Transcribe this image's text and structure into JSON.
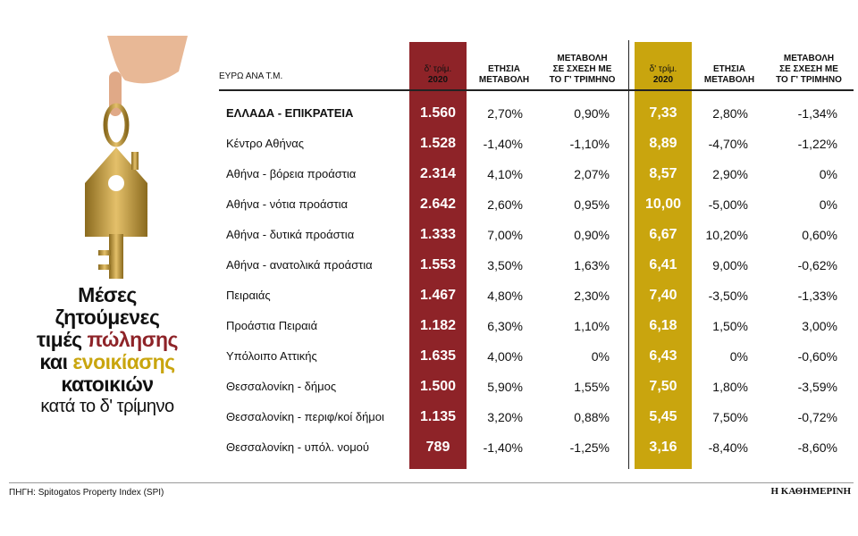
{
  "title": {
    "lines": [
      [
        {
          "text": "Μέσες"
        }
      ],
      [
        {
          "text": "ζητούμενες"
        }
      ],
      [
        {
          "text": "τιμές "
        },
        {
          "text": "πώλησης",
          "color": "#8e2328"
        }
      ],
      [
        {
          "text": "και "
        },
        {
          "text": "ενοικίασης",
          "color": "#c9a50e"
        }
      ],
      [
        {
          "text": "κατοικιών"
        }
      ]
    ],
    "subtitle": "κατά το δ' τρίμηνο"
  },
  "table": {
    "headers": [
      [
        "ΕΥΡΩ ΑΝΑ Τ.Μ."
      ],
      [
        "δ' τρίμ.",
        "2020"
      ],
      [
        "ΕΤΗΣΙΑ",
        "ΜΕΤΑΒΟΛΗ"
      ],
      [
        "ΜΕΤΑΒΟΛΗ",
        "ΣΕ ΣΧΕΣΗ ΜΕ",
        "ΤΟ Γ' ΤΡΙΜΗΝΟ"
      ],
      [
        "δ' τρίμ.",
        "2020"
      ],
      [
        "ΕΤΗΣΙΑ",
        "ΜΕΤΑΒΟΛΗ"
      ],
      [
        "ΜΕΤΑΒΟΛΗ",
        "ΣΕ ΣΧΕΣΗ ΜΕ",
        "ΤΟ Γ' ΤΡΙΜΗΝΟ"
      ]
    ],
    "rows": [
      [
        "ΕΛΛΑΔΑ - ΕΠΙΚΡΑΤΕΙΑ",
        "1.560",
        "2,70%",
        "0,90%",
        "7,33",
        "2,80%",
        "-1,34%"
      ],
      [
        "Κέντρο Αθήνας",
        "1.528",
        "-1,40%",
        "-1,10%",
        "8,89",
        "-4,70%",
        "-1,22%"
      ],
      [
        "Αθήνα - βόρεια προάστια",
        "2.314",
        "4,10%",
        "2,07%",
        "8,57",
        "2,90%",
        "0%"
      ],
      [
        "Αθήνα - νότια προάστια",
        "2.642",
        "2,60%",
        "0,95%",
        "10,00",
        "-5,00%",
        "0%"
      ],
      [
        "Αθήνα - δυτικά προάστια",
        "1.333",
        "7,00%",
        "0,90%",
        "6,67",
        "10,20%",
        "0,60%"
      ],
      [
        "Αθήνα - ανατολικά προάστια",
        "1.553",
        "3,50%",
        "1,63%",
        "6,41",
        "9,00%",
        "-0,62%"
      ],
      [
        "Πειραιάς",
        "1.467",
        "4,80%",
        "2,30%",
        "7,40",
        "-3,50%",
        "-1,33%"
      ],
      [
        "Προάστια Πειραιά",
        "1.182",
        "6,30%",
        "1,10%",
        "6,18",
        "1,50%",
        "3,00%"
      ],
      [
        "Υπόλοιπο Αττικής",
        "1.635",
        "4,00%",
        "0%",
        "6,43",
        "0%",
        "-0,60%"
      ],
      [
        "Θεσσαλονίκη - δήμος",
        "1.500",
        "5,90%",
        "1,55%",
        "7,50",
        "1,80%",
        "-3,59%"
      ],
      [
        "Θεσσαλονίκη - περιφ/κοί δήμοι",
        "1.135",
        "3,20%",
        "0,88%",
        "5,45",
        "7,50%",
        "-0,72%"
      ],
      [
        "Θεσσαλονίκη - υπόλ. νομού",
        "789",
        "-1,40%",
        "-1,25%",
        "3,16",
        "-8,40%",
        "-8,60%"
      ]
    ]
  },
  "source": "ΠΗΓΗ: Spitogatos Property Index (SPI)",
  "brand": "Η ΚΑΘΗΜΕΡΙΝΗ"
}
